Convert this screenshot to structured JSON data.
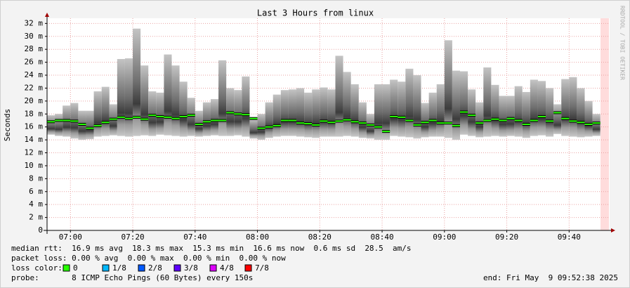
{
  "chart_data": {
    "type": "smoke",
    "title": "Last 3 Hours from linux",
    "ylabel": "Seconds",
    "watermark": "RRDTOOL / TOBI OETIKER",
    "x": [
      412.5,
      415,
      417.5,
      420,
      422.5,
      425,
      427.5,
      430,
      432.5,
      435,
      437.5,
      440,
      442.5,
      445,
      447.5,
      450,
      452.5,
      455,
      457.5,
      460,
      462.5,
      465,
      467.5,
      470,
      472.5,
      475,
      477.5,
      480,
      482.5,
      485,
      487.5,
      490,
      492.5,
      495,
      497.5,
      500,
      502.5,
      505,
      507.5,
      510,
      512.5,
      515,
      517.5,
      520,
      522.5,
      525,
      527.5,
      530,
      532.5,
      535,
      537.5,
      540,
      542.5,
      545,
      547.5,
      550,
      552.5,
      555,
      557.5,
      560,
      562.5,
      565,
      567.5,
      570,
      572.5,
      575,
      577.5,
      580,
      582.5,
      585,
      587.5
    ],
    "series": [
      {
        "name": "median rtt",
        "color": "#26ff00",
        "values": [
          16.8,
          17.0,
          17.0,
          16.9,
          16.4,
          15.8,
          16.2,
          16.7,
          17.2,
          17.5,
          17.3,
          17.5,
          17.2,
          17.8,
          17.6,
          17.5,
          17.3,
          17.6,
          17.8,
          16.4,
          16.8,
          17.0,
          17.0,
          18.2,
          18.0,
          17.9,
          17.3,
          15.8,
          16.0,
          16.2,
          17.0,
          17.0,
          16.6,
          16.5,
          16.3,
          16.9,
          16.7,
          16.9,
          17.1,
          16.8,
          16.6,
          16.3,
          16.0,
          15.3,
          17.6,
          17.5,
          17.0,
          16.3,
          16.7,
          17.0,
          16.6,
          16.6,
          16.2,
          18.3,
          17.8,
          16.6,
          17.0,
          17.2,
          17.0,
          17.3,
          17.0,
          16.4,
          17.0,
          17.6,
          16.9,
          18.2,
          17.3,
          16.9,
          16.7,
          16.4,
          16.6
        ]
      }
    ],
    "smoke_min": [
      14.8,
      14.6,
      14.5,
      14.2,
      14.0,
      14.1,
      14.5,
      14.6,
      14.7,
      14.6,
      14.5,
      14.6,
      14.7,
      14.6,
      14.8,
      14.7,
      14.6,
      14.5,
      14.6,
      14.5,
      14.6,
      14.7,
      14.6,
      14.6,
      14.7,
      14.5,
      14.2,
      14.0,
      14.3,
      14.5,
      14.6,
      14.6,
      14.5,
      14.4,
      14.3,
      14.5,
      14.5,
      14.5,
      14.6,
      14.5,
      14.3,
      14.2,
      14.0,
      14.0,
      14.6,
      14.5,
      14.4,
      14.2,
      14.4,
      14.5,
      14.5,
      14.3,
      14.0,
      14.8,
      14.6,
      14.4,
      14.5,
      14.6,
      14.5,
      14.6,
      14.5,
      14.3,
      14.6,
      14.7,
      14.5,
      14.9,
      14.6,
      14.5,
      14.4,
      14.5,
      14.6
    ],
    "smoke_max": [
      17.8,
      18.0,
      19.3,
      19.7,
      18.5,
      18.5,
      21.5,
      22.2,
      19.5,
      26.5,
      26.6,
      31.2,
      25.5,
      21.5,
      21.3,
      27.2,
      25.5,
      23.0,
      20.5,
      18.5,
      19.8,
      20.3,
      26.3,
      22.0,
      21.7,
      23.8,
      17.2,
      18.0,
      19.8,
      21.0,
      21.7,
      21.8,
      22.0,
      21.3,
      21.8,
      22.1,
      21.8,
      27.0,
      24.5,
      22.6,
      19.8,
      18.0,
      22.6,
      22.6,
      23.3,
      23.0,
      25.0,
      24.0,
      19.7,
      21.3,
      22.6,
      29.4,
      24.7,
      24.6,
      21.8,
      19.8,
      25.2,
      22.5,
      20.8,
      20.8,
      22.3,
      21.4,
      23.3,
      23.1,
      22.0,
      19.5,
      23.4,
      23.7,
      22.0,
      20.0,
      18.0
    ],
    "step": 2.5,
    "xlim": [
      412.5,
      593
    ],
    "xticks": [
      {
        "value": 420,
        "label": "07:00"
      },
      {
        "value": 440,
        "label": "07:20"
      },
      {
        "value": 460,
        "label": "07:40"
      },
      {
        "value": 480,
        "label": "08:00"
      },
      {
        "value": 500,
        "label": "08:20"
      },
      {
        "value": 520,
        "label": "08:40"
      },
      {
        "value": 540,
        "label": "09:00"
      },
      {
        "value": 560,
        "label": "09:20"
      },
      {
        "value": 580,
        "label": "09:40"
      }
    ],
    "ylim": [
      0,
      32.8
    ],
    "yticks": [
      0,
      {
        "value": 2,
        "label": "2 m"
      },
      {
        "value": 4,
        "label": "4 m"
      },
      {
        "value": 6,
        "label": "6 m"
      },
      {
        "value": 8,
        "label": "8 m"
      },
      {
        "value": 10,
        "label": "10 m"
      },
      {
        "value": 12,
        "label": "12 m"
      },
      {
        "value": 14,
        "label": "14 m"
      },
      {
        "value": 16,
        "label": "16 m"
      },
      {
        "value": 18,
        "label": "18 m"
      },
      {
        "value": 20,
        "label": "20 m"
      },
      {
        "value": 22,
        "label": "22 m"
      },
      {
        "value": 24,
        "label": "24 m"
      },
      {
        "value": 26,
        "label": "26 m"
      },
      {
        "value": 28,
        "label": "28 m"
      },
      {
        "value": 30,
        "label": "30 m"
      },
      {
        "value": 32,
        "label": "32 m"
      }
    ],
    "grid": true,
    "stats": [
      "median rtt:  16.9 ms avg  18.3 ms max  15.3 ms min  16.6 ms now  0.6 ms sd  28.5  am/s",
      "packet loss: 0.00 % avg  0.00 % max  0.00 % min  0.00 % now"
    ],
    "loss_label": "loss color:",
    "loss_colors": [
      {
        "label": "0",
        "color": "#26ff00"
      },
      {
        "label": "1/8",
        "color": "#00b8ff"
      },
      {
        "label": "2/8",
        "color": "#0059ff"
      },
      {
        "label": "3/8",
        "color": "#5e00ff"
      },
      {
        "label": "4/8",
        "color": "#dd00ff"
      },
      {
        "label": "7/8",
        "color": "#ff0000"
      }
    ],
    "probe": "probe:       8 ICMP Echo Pings (60 Bytes) every 150s",
    "end": "end: Fri May  9 09:52:38 2025"
  }
}
